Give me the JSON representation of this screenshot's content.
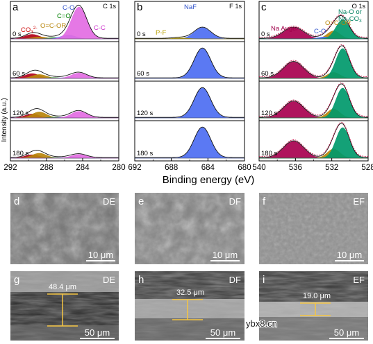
{
  "panels": [
    {
      "letter": "a",
      "core_level_prefix": "C",
      "core_level_suffix": "1s",
      "x_ticks": [
        "292",
        "288",
        "284",
        "280"
      ],
      "rows": [
        "0 s",
        "60 s",
        "120 s",
        "180 s"
      ],
      "annotations": [
        {
          "text_main": "CO",
          "text_sub": "3",
          "text_sup": "2-",
          "color": "#cc0000"
        },
        {
          "text": "O=C-OR",
          "color": "#b8860b"
        },
        {
          "text": "C=O",
          "color": "#008000"
        },
        {
          "text": "C-O",
          "color": "#3355cc"
        },
        {
          "text": "C-C",
          "color": "#cc33cc"
        }
      ]
    },
    {
      "letter": "b",
      "core_level_prefix": "F",
      "core_level_suffix": "1s",
      "x_ticks": [
        "692",
        "688",
        "684",
        "680"
      ],
      "rows": [
        "0 s",
        "60 s",
        "120 s",
        "180 s"
      ],
      "annotations": [
        {
          "text": "NaF",
          "color": "#3355cc"
        },
        {
          "text": "P-F",
          "color": "#b8a000"
        }
      ]
    },
    {
      "letter": "c",
      "core_level_prefix": "O",
      "core_level_suffix": "1s",
      "x_ticks": [
        "540",
        "536",
        "532",
        "528"
      ],
      "rows": [
        "0 s",
        "60 s",
        "120 s",
        "180 s"
      ],
      "annotations": [
        {
          "text": "Na Auger",
          "color": "#a0004a"
        },
        {
          "text": "O=C-OR",
          "color": "#b8860b"
        },
        {
          "text": "C-O",
          "color": "#3355cc"
        },
        {
          "text": "Na-O or",
          "color": "#008060"
        },
        {
          "text_main": "Na",
          "text_sub": "2",
          "text_tail": "CO",
          "text_sub2": "3",
          "color": "#008060"
        }
      ]
    }
  ],
  "y_axis_label": "Intensity (a.u.)",
  "x_axis_label": "Binding energy (eV)",
  "sem_top": [
    {
      "letter": "d",
      "tag": "DE",
      "scale": "10 μm"
    },
    {
      "letter": "e",
      "tag": "DF",
      "scale": "10 μm"
    },
    {
      "letter": "f",
      "tag": "EF",
      "scale": "10 μm"
    }
  ],
  "sem_bottom": [
    {
      "letter": "g",
      "tag": "DE",
      "scale": "50 μm",
      "thickness": "48.4 μm"
    },
    {
      "letter": "h",
      "tag": "DF",
      "scale": "50 μm",
      "thickness": "32.5 μm"
    },
    {
      "letter": "i",
      "tag": "EF",
      "scale": "50 μm",
      "thickness": "19.0 μm"
    }
  ],
  "watermark": "ybx8.cn",
  "colors": {
    "carbonate": "#b2001a",
    "ester": "#b8860b",
    "carbonyl": "#2e8b2e",
    "c_o": "#4a6cf0",
    "c_c": "#e36de3",
    "naf": "#4d6ef2",
    "na_auger": "#a8004f",
    "na_o": "#00996b",
    "fit": "#cc2255",
    "scale_bar": "#f5c542"
  },
  "chart_data": [
    {
      "type": "area",
      "title": "C 1s",
      "xlabel": "Binding energy (eV)",
      "ylabel": "Intensity (a.u.)",
      "xlim": [
        292,
        280
      ],
      "x_ticks": [
        292,
        288,
        284,
        280
      ],
      "rows": [
        "0 s",
        "60 s",
        "120 s",
        "180 s"
      ],
      "components": [
        {
          "name": "CO3 2-",
          "center": 289.6,
          "width": 0.8,
          "heights": [
            0.14,
            0.16,
            0.13,
            0.11
          ],
          "color": "#b2001a"
        },
        {
          "name": "O=C-OR",
          "center": 288.8,
          "width": 0.8,
          "heights": [
            0.06,
            0.13,
            0.2,
            0.16
          ],
          "color": "#b8860b"
        },
        {
          "name": "C=O",
          "center": 287.2,
          "width": 0.7,
          "heights": [
            0.04,
            0.03,
            0.03,
            0.02
          ],
          "color": "#2e8b2e"
        },
        {
          "name": "C-O",
          "center": 285.6,
          "width": 0.8,
          "heights": [
            0.12,
            0.03,
            0.03,
            0.02
          ],
          "color": "#4a6cf0"
        },
        {
          "name": "C-C",
          "center": 284.4,
          "width": 0.85,
          "heights": [
            1.0,
            0.18,
            0.22,
            0.12
          ],
          "color": "#e36de3"
        }
      ]
    },
    {
      "type": "area",
      "title": "F 1s",
      "xlabel": "Binding energy (eV)",
      "ylabel": "Intensity (a.u.)",
      "xlim": [
        692,
        680
      ],
      "x_ticks": [
        692,
        688,
        684,
        680
      ],
      "rows": [
        "0 s",
        "60 s",
        "120 s",
        "180 s"
      ],
      "components": [
        {
          "name": "NaF",
          "center": 684.6,
          "width": 0.9,
          "heights": [
            0.35,
            1.0,
            1.0,
            1.0
          ],
          "color": "#4d6ef2"
        },
        {
          "name": "P-F",
          "center": 687.0,
          "width": 0.8,
          "heights": [
            0.03,
            0.0,
            0.0,
            0.0
          ],
          "color": "#b8a000"
        }
      ]
    },
    {
      "type": "area",
      "title": "O 1s",
      "xlabel": "Binding energy (eV)",
      "ylabel": "Intensity (a.u.)",
      "xlim": [
        540,
        528
      ],
      "x_ticks": [
        540,
        536,
        532,
        528
      ],
      "rows": [
        "0 s",
        "60 s",
        "120 s",
        "180 s"
      ],
      "components": [
        {
          "name": "Na Auger",
          "center": 536.2,
          "width": 1.1,
          "heights": [
            0.35,
            0.55,
            0.55,
            0.55
          ],
          "color": "#a8004f"
        },
        {
          "name": "O=C-OR",
          "center": 531.8,
          "width": 0.7,
          "heights": [
            0.25,
            0.2,
            0.3,
            0.3
          ],
          "color": "#b8860b"
        },
        {
          "name": "C-O",
          "center": 532.8,
          "width": 0.7,
          "heights": [
            0.06,
            0.0,
            0.0,
            0.0
          ],
          "color": "#4a6cf0"
        },
        {
          "name": "Na-O or Na2CO3",
          "center": 530.8,
          "width": 0.75,
          "heights": [
            0.6,
            1.0,
            1.0,
            1.0
          ],
          "color": "#00996b"
        }
      ]
    }
  ]
}
